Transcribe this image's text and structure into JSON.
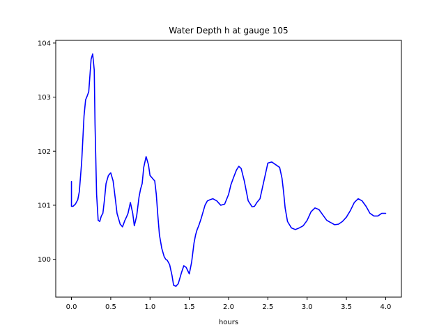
{
  "chart_data": {
    "type": "line",
    "title": "Water Depth h at gauge 105",
    "xlabel": "hours",
    "ylabel": "",
    "xlim": [
      -0.2,
      4.2
    ],
    "ylim": [
      99.3,
      104.05
    ],
    "xticks": [
      0.0,
      0.5,
      1.0,
      1.5,
      2.0,
      2.5,
      3.0,
      3.5,
      4.0
    ],
    "xtick_labels": [
      "0.0",
      "0.5",
      "1.0",
      "1.5",
      "2.0",
      "2.5",
      "3.0",
      "3.5",
      "4.0"
    ],
    "yticks": [
      100,
      101,
      102,
      103,
      104
    ],
    "ytick_labels": [
      "100",
      "101",
      "102",
      "103",
      "104"
    ],
    "grid": false,
    "series": [
      {
        "color": "#0000ff",
        "x": [
          0.0,
          0.0,
          0.02,
          0.05,
          0.08,
          0.1,
          0.13,
          0.16,
          0.18,
          0.2,
          0.22,
          0.25,
          0.27,
          0.29,
          0.3,
          0.32,
          0.34,
          0.36,
          0.38,
          0.4,
          0.42,
          0.44,
          0.47,
          0.5,
          0.53,
          0.56,
          0.58,
          0.6,
          0.62,
          0.65,
          0.68,
          0.7,
          0.72,
          0.75,
          0.78,
          0.8,
          0.83,
          0.86,
          0.88,
          0.9,
          0.92,
          0.95,
          0.98,
          1.0,
          1.03,
          1.06,
          1.08,
          1.1,
          1.12,
          1.15,
          1.18,
          1.2,
          1.22,
          1.25,
          1.28,
          1.3,
          1.33,
          1.36,
          1.4,
          1.43,
          1.46,
          1.5,
          1.53,
          1.56,
          1.58,
          1.6,
          1.62,
          1.65,
          1.68,
          1.7,
          1.73,
          1.76,
          1.8,
          1.85,
          1.9,
          1.95,
          2.0,
          2.03,
          2.06,
          2.1,
          2.13,
          2.16,
          2.2,
          2.25,
          2.3,
          2.33,
          2.36,
          2.4,
          2.45,
          2.5,
          2.55,
          2.6,
          2.65,
          2.68,
          2.7,
          2.72,
          2.75,
          2.8,
          2.85,
          2.9,
          2.95,
          3.0,
          3.05,
          3.1,
          3.15,
          3.2,
          3.25,
          3.3,
          3.35,
          3.4,
          3.45,
          3.5,
          3.55,
          3.6,
          3.65,
          3.7,
          3.75,
          3.8,
          3.85,
          3.9,
          3.95,
          4.0
        ],
        "values": [
          101.44,
          100.98,
          100.98,
          101.02,
          101.1,
          101.25,
          101.8,
          102.65,
          102.95,
          103.02,
          103.1,
          103.7,
          103.8,
          103.5,
          102.5,
          101.2,
          100.72,
          100.7,
          100.8,
          100.85,
          101.1,
          101.4,
          101.55,
          101.6,
          101.45,
          101.1,
          100.85,
          100.75,
          100.65,
          100.6,
          100.72,
          100.78,
          100.85,
          101.05,
          100.85,
          100.62,
          100.8,
          101.15,
          101.3,
          101.4,
          101.7,
          101.9,
          101.75,
          101.55,
          101.5,
          101.45,
          101.2,
          100.8,
          100.45,
          100.2,
          100.05,
          100.0,
          99.98,
          99.9,
          99.7,
          99.52,
          99.5,
          99.55,
          99.75,
          99.88,
          99.85,
          99.73,
          99.95,
          100.3,
          100.45,
          100.55,
          100.62,
          100.75,
          100.9,
          101.0,
          101.08,
          101.1,
          101.12,
          101.08,
          101.0,
          101.02,
          101.2,
          101.38,
          101.5,
          101.65,
          101.72,
          101.68,
          101.45,
          101.08,
          100.97,
          100.98,
          101.05,
          101.12,
          101.45,
          101.78,
          101.8,
          101.75,
          101.7,
          101.5,
          101.25,
          100.95,
          100.7,
          100.58,
          100.55,
          100.58,
          100.62,
          100.72,
          100.88,
          100.95,
          100.92,
          100.82,
          100.72,
          100.68,
          100.64,
          100.65,
          100.7,
          100.78,
          100.9,
          101.05,
          101.12,
          101.08,
          100.98,
          100.85,
          100.8,
          100.8,
          100.85,
          100.85
        ]
      }
    ]
  }
}
